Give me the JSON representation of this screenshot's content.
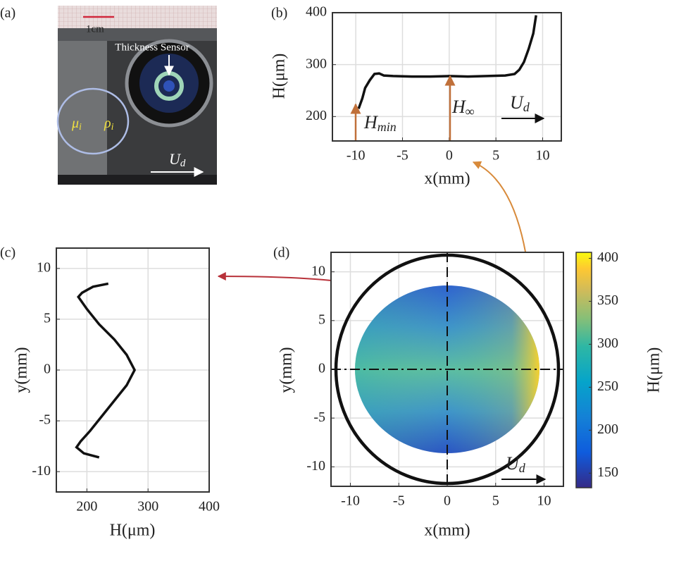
{
  "photo": {
    "panel": "(a)",
    "scale_label": "1cm",
    "sensor_label": "Thickness Sensor",
    "viscosity": "μ",
    "viscosity_sub": "i",
    "density": "ρ",
    "density_sub": "i",
    "velocity": "U",
    "velocity_sub": "d"
  },
  "chart_data": [
    {
      "type": "line",
      "panel": "(b)",
      "x_label": "x(mm)",
      "y_label": "H(μm)",
      "x": [
        -9.7,
        -9.3,
        -9,
        -8.5,
        -8,
        -7.5,
        -7,
        -6,
        -4,
        -2,
        0,
        2,
        4,
        6,
        7,
        7.5,
        8,
        8.5,
        9,
        9.3
      ],
      "values": [
        215,
        235,
        255,
        270,
        282,
        283,
        279,
        278,
        277,
        277,
        278,
        277,
        278,
        279,
        282,
        290,
        305,
        330,
        360,
        395
      ],
      "color": "#111111",
      "xlim": [
        -12.5,
        12
      ],
      "xticks": [
        -10,
        -5,
        0,
        5,
        10
      ],
      "ylim": [
        153,
        400
      ],
      "yticks": [
        200,
        300,
        400
      ],
      "grid": true,
      "annotations": [
        {
          "text": "H",
          "sub": "min"
        },
        {
          "text": "H",
          "sub": "∞"
        },
        {
          "text": "U",
          "sub": "d"
        }
      ]
    },
    {
      "type": "profile",
      "panel": "(c)",
      "x_label": "H(μm)",
      "y_label": "y(mm)",
      "y": [
        8.5,
        8.2,
        7.6,
        7.2,
        6,
        4.5,
        3,
        1.5,
        0,
        -1.5,
        -3,
        -4.5,
        -6,
        -7,
        -7.6,
        -8.2,
        -8.6
      ],
      "values": [
        235,
        210,
        192,
        186,
        200,
        220,
        245,
        265,
        278,
        265,
        245,
        225,
        205,
        190,
        183,
        195,
        220
      ],
      "color": "#111111",
      "xlim": [
        150,
        400
      ],
      "xticks": [
        200,
        300,
        400
      ],
      "ylim": [
        -12,
        12
      ],
      "yticks": [
        -10,
        -5,
        0,
        5,
        10
      ],
      "grid": true
    },
    {
      "type": "heatmap",
      "panel": "(d)",
      "x_label": "x(mm)",
      "y_label": "y(mm)",
      "colorbar_label": "H(μm)",
      "xlim": [
        -12,
        12
      ],
      "xticks": [
        -10,
        -5,
        0,
        5,
        10
      ],
      "ylim": [
        -12,
        12
      ],
      "yticks": [
        -10,
        -5,
        0,
        5,
        10
      ],
      "grid": true,
      "clim": [
        133,
        407
      ],
      "cticks": [
        150,
        200,
        250,
        300,
        350,
        400
      ],
      "annotations": [
        {
          "text": "U",
          "sub": "d"
        }
      ]
    }
  ]
}
